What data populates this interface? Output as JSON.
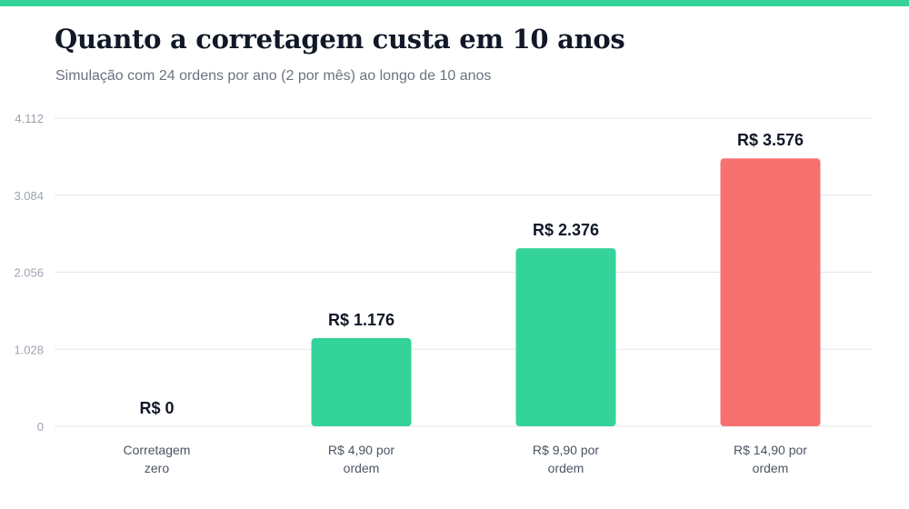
{
  "colors": {
    "accent": "#34d399",
    "highlight": "#f87171",
    "grid": "#e5e7eb"
  },
  "chart_data": {
    "type": "bar",
    "title": "Quanto a corretagem custa em 10 anos",
    "subtitle": "Simulação com 24 ordens por ano (2 por mês) ao longo de 10 anos",
    "xlabel": "",
    "ylabel": "",
    "ylim": [
      0,
      4112
    ],
    "yticks": [
      0,
      1028,
      2056,
      3084,
      4112
    ],
    "ytick_labels": [
      "0",
      "1.028",
      "2.056",
      "3.084",
      "4.112"
    ],
    "grid": true,
    "categories": [
      [
        "Corretagem",
        "zero"
      ],
      [
        "R$ 4,90 por",
        "ordem"
      ],
      [
        "R$ 9,90 por",
        "ordem"
      ],
      [
        "R$ 14,90 por",
        "ordem"
      ]
    ],
    "values": [
      0,
      1176,
      2376,
      3576
    ],
    "value_labels": [
      "R$ 0",
      "R$ 1.176",
      "R$ 2.376",
      "R$ 3.576"
    ],
    "bar_colors": [
      "#34d399",
      "#34d399",
      "#34d399",
      "#f87171"
    ]
  }
}
